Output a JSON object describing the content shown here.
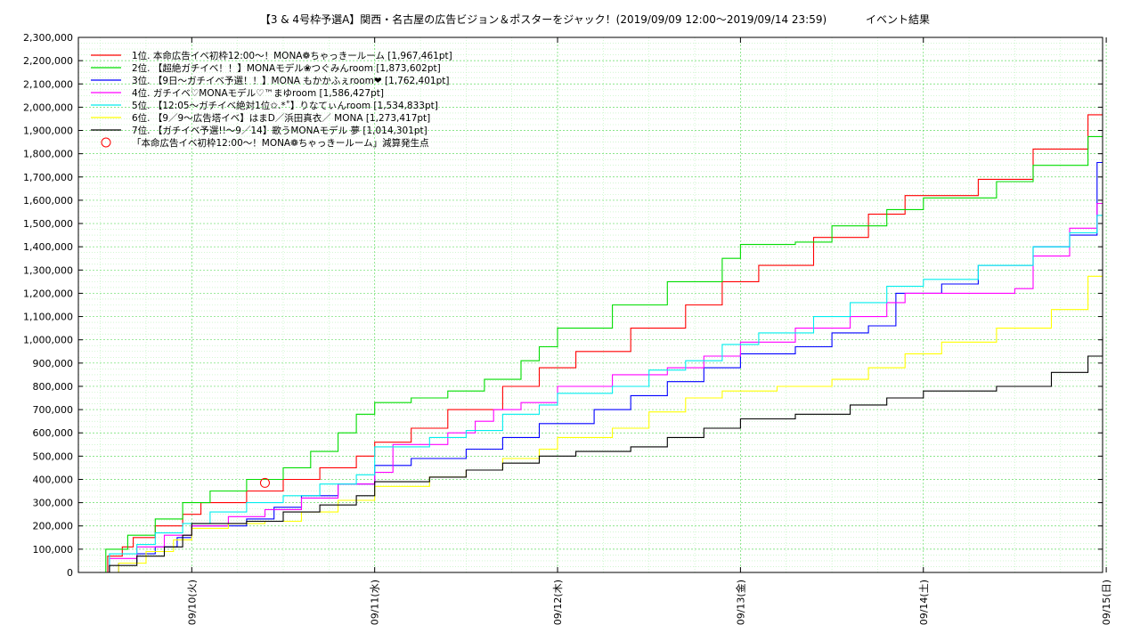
{
  "chart_data": {
    "type": "line",
    "title": "【3 & 4号枠予選A】関西・名古屋の広告ビジョン＆ポスターをジャック！(2019/09/09 12:00〜2019/09/14 23:59)",
    "subtitle": "イベント結果",
    "xlabel": "",
    "ylabel": "",
    "xlim": [
      -0.62,
      4.98
    ],
    "ylim": [
      0,
      2300000
    ],
    "grid": true,
    "legend_position": "top-left",
    "yticks": [
      {
        "value": 0,
        "label": "0"
      },
      {
        "value": 100000,
        "label": "100,000"
      },
      {
        "value": 200000,
        "label": "200,000"
      },
      {
        "value": 300000,
        "label": "300,000"
      },
      {
        "value": 400000,
        "label": "400,000"
      },
      {
        "value": 500000,
        "label": "500,000"
      },
      {
        "value": 600000,
        "label": "600,000"
      },
      {
        "value": 700000,
        "label": "700,000"
      },
      {
        "value": 800000,
        "label": "800,000"
      },
      {
        "value": 900000,
        "label": "900,000"
      },
      {
        "value": 1000000,
        "label": "1,000,000"
      },
      {
        "value": 1100000,
        "label": "1,100,000"
      },
      {
        "value": 1200000,
        "label": "1,200,000"
      },
      {
        "value": 1300000,
        "label": "1,300,000"
      },
      {
        "value": 1400000,
        "label": "1,400,000"
      },
      {
        "value": 1500000,
        "label": "1,500,000"
      },
      {
        "value": 1600000,
        "label": "1,600,000"
      },
      {
        "value": 1700000,
        "label": "1,700,000"
      },
      {
        "value": 1800000,
        "label": "1,800,000"
      },
      {
        "value": 1900000,
        "label": "1,900,000"
      },
      {
        "value": 2000000,
        "label": "2,000,000"
      },
      {
        "value": 2100000,
        "label": "2,100,000"
      },
      {
        "value": 2200000,
        "label": "2,200,000"
      },
      {
        "value": 2300000,
        "label": "2,300,000"
      }
    ],
    "xticks": [
      {
        "value": 0,
        "label": "09/10(火)"
      },
      {
        "value": 1,
        "label": "09/11(水)"
      },
      {
        "value": 2,
        "label": "09/12(木)"
      },
      {
        "value": 3,
        "label": "09/13(金)"
      },
      {
        "value": 4,
        "label": "09/14(土)"
      },
      {
        "value": 5,
        "label": "09/15(日)"
      }
    ],
    "series": [
      {
        "name": "1位. 本命広告イベ初枠12:00〜！MONA❁ちゃっきールーム [1,967,461pt]",
        "color": "#ff0000",
        "points": [
          [
            -0.5,
            0
          ],
          [
            -0.46,
            70000
          ],
          [
            -0.38,
            110000
          ],
          [
            -0.32,
            150000
          ],
          [
            -0.2,
            200000
          ],
          [
            -0.05,
            250000
          ],
          [
            0.05,
            300000
          ],
          [
            0.3,
            350000
          ],
          [
            0.5,
            400000
          ],
          [
            0.7,
            450000
          ],
          [
            0.9,
            500000
          ],
          [
            1.0,
            560000
          ],
          [
            1.2,
            620000
          ],
          [
            1.4,
            700000
          ],
          [
            1.7,
            800000
          ],
          [
            1.9,
            880000
          ],
          [
            2.1,
            950000
          ],
          [
            2.4,
            1050000
          ],
          [
            2.7,
            1150000
          ],
          [
            2.9,
            1250000
          ],
          [
            3.1,
            1320000
          ],
          [
            3.4,
            1440000
          ],
          [
            3.7,
            1540000
          ],
          [
            3.9,
            1620000
          ],
          [
            4.3,
            1690000
          ],
          [
            4.6,
            1820000
          ],
          [
            4.9,
            1967461
          ]
        ]
      },
      {
        "name": "2位. 【超絶ガチイベ！！】MONAモデル❀つぐみんroom [1,873,602pt]",
        "color": "#00dd00",
        "points": [
          [
            -0.5,
            0
          ],
          [
            -0.47,
            100000
          ],
          [
            -0.35,
            160000
          ],
          [
            -0.2,
            230000
          ],
          [
            -0.05,
            300000
          ],
          [
            0.1,
            350000
          ],
          [
            0.3,
            400000
          ],
          [
            0.5,
            450000
          ],
          [
            0.65,
            520000
          ],
          [
            0.8,
            600000
          ],
          [
            0.9,
            680000
          ],
          [
            1.0,
            730000
          ],
          [
            1.2,
            750000
          ],
          [
            1.4,
            780000
          ],
          [
            1.6,
            830000
          ],
          [
            1.8,
            910000
          ],
          [
            1.9,
            970000
          ],
          [
            2.0,
            1050000
          ],
          [
            2.3,
            1150000
          ],
          [
            2.6,
            1250000
          ],
          [
            2.9,
            1350000
          ],
          [
            3.0,
            1410000
          ],
          [
            3.3,
            1420000
          ],
          [
            3.5,
            1490000
          ],
          [
            3.8,
            1560000
          ],
          [
            4.0,
            1610000
          ],
          [
            4.4,
            1680000
          ],
          [
            4.6,
            1750000
          ],
          [
            4.9,
            1873602
          ]
        ]
      },
      {
        "name": "3位. 【9日〜ガチイベ予選！！】MONA もかかふぇroom❤ [1,762,401pt]",
        "color": "#0000ff",
        "points": [
          [
            -0.45,
            0
          ],
          [
            -0.4,
            40000
          ],
          [
            -0.3,
            80000
          ],
          [
            -0.2,
            110000
          ],
          [
            -0.08,
            150000
          ],
          [
            0.0,
            200000
          ],
          [
            0.3,
            230000
          ],
          [
            0.45,
            280000
          ],
          [
            0.6,
            330000
          ],
          [
            0.8,
            380000
          ],
          [
            1.0,
            460000
          ],
          [
            1.2,
            490000
          ],
          [
            1.5,
            530000
          ],
          [
            1.7,
            580000
          ],
          [
            1.9,
            640000
          ],
          [
            2.2,
            700000
          ],
          [
            2.4,
            760000
          ],
          [
            2.6,
            820000
          ],
          [
            2.8,
            880000
          ],
          [
            3.0,
            940000
          ],
          [
            3.3,
            970000
          ],
          [
            3.5,
            1030000
          ],
          [
            3.7,
            1060000
          ],
          [
            3.85,
            1200000
          ],
          [
            4.1,
            1240000
          ],
          [
            4.3,
            1320000
          ],
          [
            4.6,
            1400000
          ],
          [
            4.8,
            1450000
          ],
          [
            4.95,
            1762401
          ]
        ]
      },
      {
        "name": "4位. ガチイベ♡MONAモデル♡™まゆroom [1,586,427pt]",
        "color": "#ff00ff",
        "points": [
          [
            -0.5,
            0
          ],
          [
            -0.45,
            60000
          ],
          [
            -0.3,
            110000
          ],
          [
            -0.15,
            160000
          ],
          [
            0.0,
            200000
          ],
          [
            0.2,
            240000
          ],
          [
            0.4,
            270000
          ],
          [
            0.6,
            320000
          ],
          [
            0.8,
            380000
          ],
          [
            1.0,
            430000
          ],
          [
            1.1,
            550000
          ],
          [
            1.4,
            600000
          ],
          [
            1.55,
            650000
          ],
          [
            1.65,
            700000
          ],
          [
            1.8,
            730000
          ],
          [
            2.0,
            800000
          ],
          [
            2.3,
            850000
          ],
          [
            2.6,
            880000
          ],
          [
            2.8,
            930000
          ],
          [
            3.0,
            990000
          ],
          [
            3.3,
            1050000
          ],
          [
            3.6,
            1100000
          ],
          [
            3.8,
            1160000
          ],
          [
            3.9,
            1200000
          ],
          [
            4.5,
            1220000
          ],
          [
            4.6,
            1360000
          ],
          [
            4.8,
            1480000
          ],
          [
            4.95,
            1586427
          ]
        ]
      },
      {
        "name": "5位. 【12:05〜ガチイベ絶対1位✩.*˚】りなてぃんroom [1,534,833pt]",
        "color": "#00eeee",
        "points": [
          [
            -0.5,
            0
          ],
          [
            -0.45,
            80000
          ],
          [
            -0.3,
            120000
          ],
          [
            -0.2,
            170000
          ],
          [
            -0.05,
            210000
          ],
          [
            0.1,
            260000
          ],
          [
            0.3,
            300000
          ],
          [
            0.5,
            330000
          ],
          [
            0.7,
            380000
          ],
          [
            0.9,
            420000
          ],
          [
            1.0,
            540000
          ],
          [
            1.3,
            580000
          ],
          [
            1.5,
            610000
          ],
          [
            1.7,
            680000
          ],
          [
            1.9,
            720000
          ],
          [
            2.0,
            770000
          ],
          [
            2.3,
            800000
          ],
          [
            2.5,
            870000
          ],
          [
            2.7,
            910000
          ],
          [
            2.9,
            980000
          ],
          [
            3.1,
            1030000
          ],
          [
            3.4,
            1100000
          ],
          [
            3.6,
            1160000
          ],
          [
            3.8,
            1230000
          ],
          [
            4.0,
            1260000
          ],
          [
            4.3,
            1320000
          ],
          [
            4.6,
            1400000
          ],
          [
            4.8,
            1460000
          ],
          [
            4.95,
            1534833
          ]
        ]
      },
      {
        "name": "6位. 【9／9〜広告塔イベ】はまD／浜田真衣／ MONA [1,273,417pt]",
        "color": "#ffff00",
        "points": [
          [
            -0.5,
            0
          ],
          [
            -0.4,
            40000
          ],
          [
            -0.25,
            90000
          ],
          [
            -0.1,
            140000
          ],
          [
            0.0,
            190000
          ],
          [
            0.2,
            210000
          ],
          [
            0.4,
            220000
          ],
          [
            0.6,
            260000
          ],
          [
            0.8,
            310000
          ],
          [
            1.0,
            370000
          ],
          [
            1.3,
            410000
          ],
          [
            1.5,
            440000
          ],
          [
            1.7,
            490000
          ],
          [
            1.9,
            530000
          ],
          [
            2.0,
            580000
          ],
          [
            2.3,
            620000
          ],
          [
            2.5,
            690000
          ],
          [
            2.7,
            750000
          ],
          [
            2.9,
            780000
          ],
          [
            3.2,
            800000
          ],
          [
            3.5,
            830000
          ],
          [
            3.7,
            880000
          ],
          [
            3.9,
            940000
          ],
          [
            4.1,
            990000
          ],
          [
            4.4,
            1050000
          ],
          [
            4.7,
            1130000
          ],
          [
            4.9,
            1273417
          ]
        ]
      },
      {
        "name": "7位. 【ガチイベ予選!!〜9／14】歌うMONAモデル 夢 [1,014,301pt]",
        "color": "#000000",
        "points": [
          [
            -0.5,
            0
          ],
          [
            -0.45,
            30000
          ],
          [
            -0.3,
            70000
          ],
          [
            -0.15,
            110000
          ],
          [
            -0.05,
            160000
          ],
          [
            0.0,
            210000
          ],
          [
            0.3,
            220000
          ],
          [
            0.5,
            260000
          ],
          [
            0.7,
            290000
          ],
          [
            0.9,
            330000
          ],
          [
            1.0,
            390000
          ],
          [
            1.3,
            410000
          ],
          [
            1.5,
            440000
          ],
          [
            1.7,
            470000
          ],
          [
            1.9,
            500000
          ],
          [
            2.1,
            520000
          ],
          [
            2.4,
            540000
          ],
          [
            2.6,
            580000
          ],
          [
            2.8,
            620000
          ],
          [
            3.0,
            660000
          ],
          [
            3.3,
            680000
          ],
          [
            3.6,
            720000
          ],
          [
            3.8,
            750000
          ],
          [
            4.0,
            780000
          ],
          [
            4.4,
            800000
          ],
          [
            4.7,
            860000
          ],
          [
            4.9,
            930000
          ],
          [
            4.98,
            1014301
          ]
        ]
      }
    ],
    "annotations": [
      {
        "type": "marker",
        "shape": "circle",
        "color": "#ff0000",
        "x": 0.4,
        "y": 385000,
        "legend_label": "「本命広告イベ初枠12:00〜！MONA❁ちゃっきールーム」減算発生点"
      }
    ]
  }
}
